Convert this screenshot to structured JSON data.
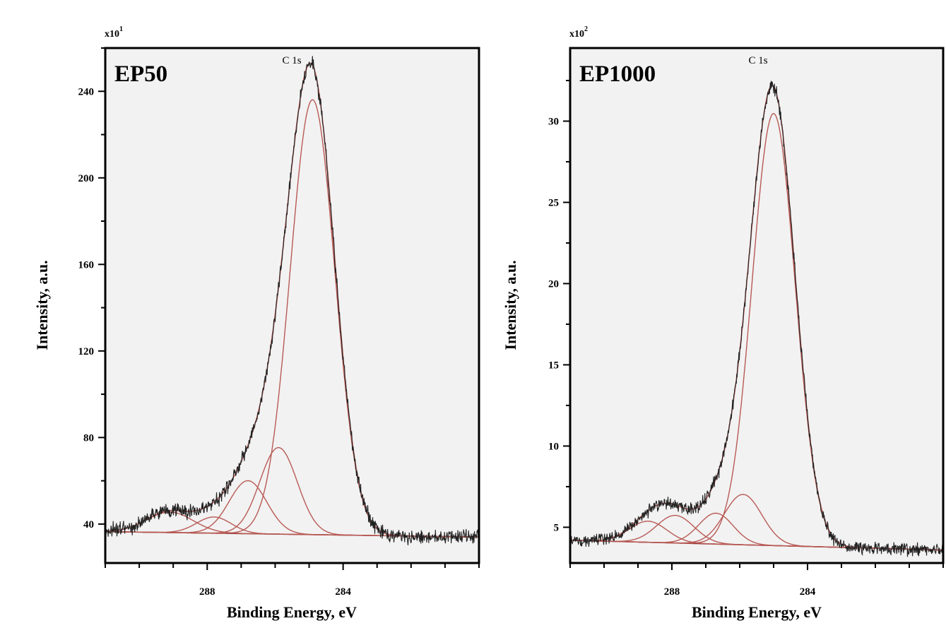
{
  "colors": {
    "plot_background": "#f2f2f2",
    "raw_data": "#222222",
    "fit_components": "#b85a55",
    "envelope": "#b85a55",
    "background": "#8a2c2c"
  },
  "chart_data": [
    {
      "type": "line",
      "panel_label": "EP50",
      "core_level": "C 1s",
      "multiplier": "x10",
      "multiplier_exp": "1",
      "xlabel": "Binding Energy, eV",
      "ylabel": "Intensity, a.u.",
      "x_reversed": true,
      "xlim": [
        291.0,
        280.0
      ],
      "ylim": [
        22,
        260
      ],
      "x_ticks": [
        {
          "value": 288,
          "label": "288"
        },
        {
          "value": 284,
          "label": "284"
        }
      ],
      "y_ticks": [
        {
          "value": 40,
          "label": "40"
        },
        {
          "value": 80,
          "label": "80"
        },
        {
          "value": 120,
          "label": "120"
        },
        {
          "value": 160,
          "label": "160"
        },
        {
          "value": 200,
          "label": "200"
        },
        {
          "value": 240,
          "label": "240"
        }
      ],
      "background_line": {
        "x": [
          291.0,
          280.0
        ],
        "y": [
          36.5,
          34.0
        ]
      },
      "components": [
        {
          "center": 284.9,
          "height": 201,
          "fwhm": 1.55
        },
        {
          "center": 285.9,
          "height": 40,
          "fwhm": 1.3
        },
        {
          "center": 286.8,
          "height": 24.5,
          "fwhm": 1.3
        },
        {
          "center": 287.8,
          "height": 7.5,
          "fwhm": 1.2
        },
        {
          "center": 289.1,
          "height": 9.5,
          "fwhm": 1.6
        }
      ],
      "envelope_peak": 253,
      "noise_amplitude": 1.6
    },
    {
      "type": "line",
      "panel_label": "EP1000",
      "core_level": "C 1s",
      "multiplier": "x10",
      "multiplier_exp": "2",
      "xlabel": "Binding Energy, eV",
      "ylabel": "Intensity, a.u.",
      "x_reversed": true,
      "xlim": [
        291.0,
        280.0
      ],
      "ylim": [
        2.8,
        34.5
      ],
      "x_ticks": [
        {
          "value": 288,
          "label": "288"
        },
        {
          "value": 284,
          "label": "284"
        }
      ],
      "y_ticks": [
        {
          "value": 5,
          "label": "5"
        },
        {
          "value": 10,
          "label": "10"
        },
        {
          "value": 15,
          "label": "15"
        },
        {
          "value": 20,
          "label": "20"
        },
        {
          "value": 25,
          "label": "25"
        },
        {
          "value": 30,
          "label": "30"
        }
      ],
      "background_line": {
        "x": [
          291.0,
          280.0
        ],
        "y": [
          4.2,
          3.6
        ]
      },
      "components": [
        {
          "center": 285.0,
          "height": 26.6,
          "fwhm": 1.5
        },
        {
          "center": 285.9,
          "height": 3.1,
          "fwhm": 1.3
        },
        {
          "center": 286.7,
          "height": 1.9,
          "fwhm": 1.2
        },
        {
          "center": 287.9,
          "height": 1.7,
          "fwhm": 1.3
        },
        {
          "center": 288.7,
          "height": 1.3,
          "fwhm": 1.3
        }
      ],
      "envelope_peak": 32.2,
      "noise_amplitude": 0.2
    }
  ]
}
